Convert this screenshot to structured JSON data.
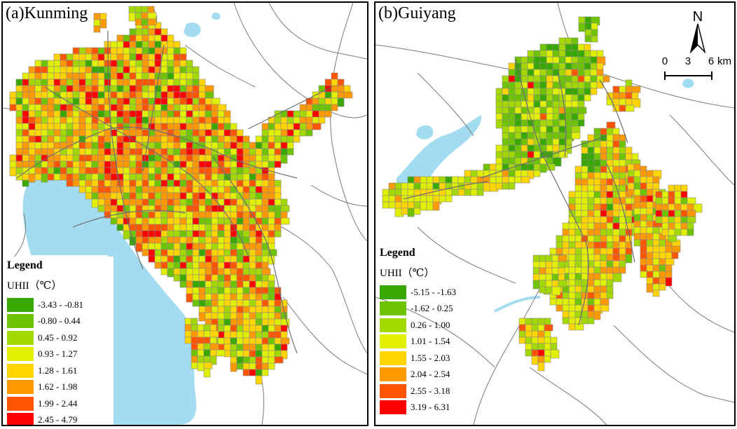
{
  "panels": [
    {
      "title": "(a)Kunming",
      "legend": {
        "title": "Legend",
        "unit": "UHII（℃）",
        "classes": [
          {
            "label": "-3.43 - -0.81",
            "color": "#38a800"
          },
          {
            "label": "-0.80 - 0.44",
            "color": "#6ec400"
          },
          {
            "label": "0.45 - 0.92",
            "color": "#a3d900"
          },
          {
            "label": "0.93 - 1.27",
            "color": "#e1ef00"
          },
          {
            "label": "1.28 - 1.61",
            "color": "#ffd500"
          },
          {
            "label": "1.62 - 1.98",
            "color": "#ff9900"
          },
          {
            "label": "1.99 - 2.44",
            "color": "#ff5500"
          },
          {
            "label": "2.45 - 4.79",
            "color": "#ff0000"
          }
        ]
      }
    },
    {
      "title": "(b)Guiyang",
      "legend": {
        "title": "Legend",
        "unit": "UHII（℃）",
        "classes": [
          {
            "label": "-5.15 - -1.63",
            "color": "#38a800"
          },
          {
            "label": "-1.62 - 0.25",
            "color": "#6ec400"
          },
          {
            "label": "0.26 - 1.00",
            "color": "#a3d900"
          },
          {
            "label": "1.01 - 1.54",
            "color": "#e1ef00"
          },
          {
            "label": "1.55 - 2.03",
            "color": "#ffd500"
          },
          {
            "label": "2.04 - 2.54",
            "color": "#ff9900"
          },
          {
            "label": "2.55 - 3.18",
            "color": "#ff5500"
          },
          {
            "label": "3.19 - 6.31",
            "color": "#ff0000"
          }
        ]
      },
      "north_arrow": {
        "label": "N"
      },
      "scale_bar": {
        "ticks": [
          "0",
          "3",
          "6"
        ],
        "unit": "km"
      }
    }
  ],
  "colors": {
    "water": "#a3dcf0",
    "road": "#7a7a7a",
    "frame": "#000000"
  }
}
